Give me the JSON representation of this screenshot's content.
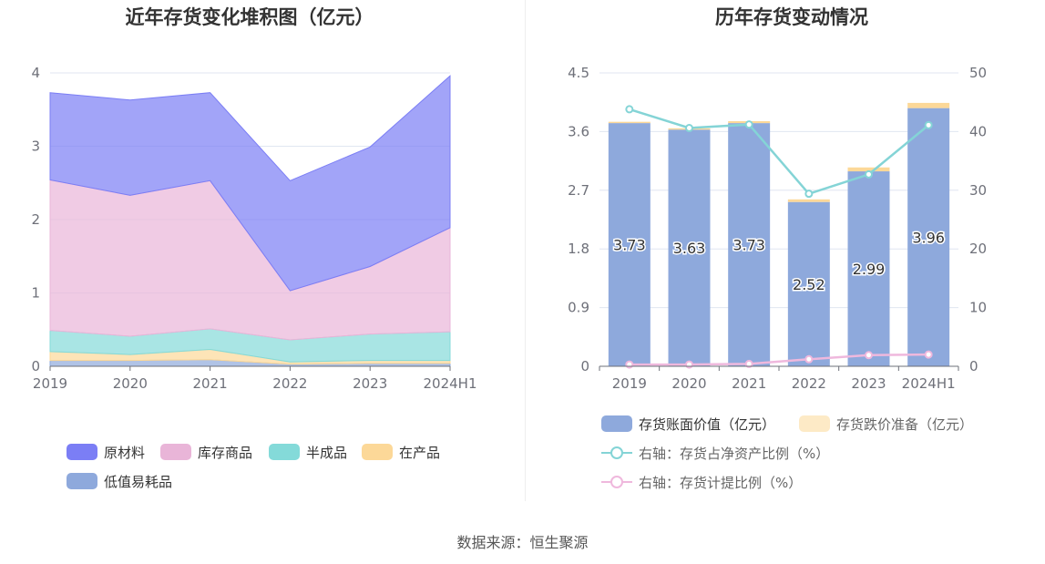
{
  "left_chart": {
    "title": "近年存货变化堆积图（亿元）",
    "legend": [
      "原材料",
      "库存商品",
      "半成品",
      "在产品",
      "低值易耗品"
    ]
  },
  "right_chart": {
    "title": "历年存货变动情况",
    "legend": [
      "存货账面价值（亿元）",
      "存货跌价准备（亿元）",
      "右轴：存货占净资产比例（%）",
      "右轴：存货计提比例（%）"
    ]
  },
  "source": "数据来源：恒生聚源",
  "colors": {
    "raw_material": "#7b7ef5",
    "inventory_goods": "#e9b5d8",
    "semi_finished": "#84dad9",
    "in_production": "#fcd898",
    "low_value": "#8ea9dc",
    "bar_book": "#8ea9dc",
    "bar_impairment": "#fcd898",
    "line_ratio": "#84d4d6",
    "line_provision": "#efb8dd"
  },
  "chart_data": [
    {
      "type": "area",
      "stacked": true,
      "title": "近年存货变化堆积图（亿元）",
      "categories": [
        "2019",
        "2020",
        "2021",
        "2022",
        "2023",
        "2024H1"
      ],
      "ylim": [
        0,
        4
      ],
      "yticks": [
        0,
        1,
        2,
        3,
        4
      ],
      "grid": true,
      "legend_position": "bottom",
      "series": [
        {
          "name": "低值易耗品",
          "values": [
            0.08,
            0.08,
            0.09,
            0.03,
            0.04,
            0.04
          ]
        },
        {
          "name": "在产品",
          "values": [
            0.12,
            0.08,
            0.14,
            0.03,
            0.04,
            0.04
          ]
        },
        {
          "name": "半成品",
          "values": [
            0.29,
            0.25,
            0.28,
            0.3,
            0.36,
            0.39
          ]
        },
        {
          "name": "库存商品",
          "values": [
            2.05,
            1.92,
            2.02,
            0.67,
            0.92,
            1.42
          ]
        },
        {
          "name": "原材料",
          "values": [
            1.19,
            1.3,
            1.2,
            1.5,
            1.63,
            2.07
          ]
        }
      ]
    },
    {
      "type": "bar",
      "stacked": true,
      "title": "历年存货变动情况",
      "categories": [
        "2019",
        "2020",
        "2021",
        "2022",
        "2023",
        "2024H1"
      ],
      "ylim": [
        0,
        4.5
      ],
      "yticks": [
        0,
        0.9,
        1.8,
        2.7,
        3.6,
        4.5
      ],
      "y2lim": [
        0,
        50
      ],
      "y2ticks": [
        0,
        10,
        20,
        30,
        40,
        50
      ],
      "grid": true,
      "legend_position": "bottom",
      "series": [
        {
          "name": "存货账面价值（亿元）",
          "type": "bar",
          "values": [
            3.73,
            3.63,
            3.73,
            2.52,
            2.99,
            3.96
          ],
          "labels": [
            "3.73",
            "3.63",
            "3.73",
            "2.52",
            "2.99",
            "3.96"
          ]
        },
        {
          "name": "存货跌价准备（亿元）",
          "type": "bar",
          "values": [
            0.02,
            0.02,
            0.03,
            0.04,
            0.06,
            0.08
          ]
        },
        {
          "name": "右轴：存货占净资产比例（%）",
          "type": "line",
          "axis": "right",
          "values": [
            43.8,
            40.6,
            41.2,
            29.4,
            32.7,
            41.1
          ]
        },
        {
          "name": "右轴：存货计提比例（%）",
          "type": "line",
          "axis": "right",
          "values": [
            0.3,
            0.3,
            0.4,
            1.2,
            1.9,
            2.0
          ]
        }
      ]
    }
  ]
}
